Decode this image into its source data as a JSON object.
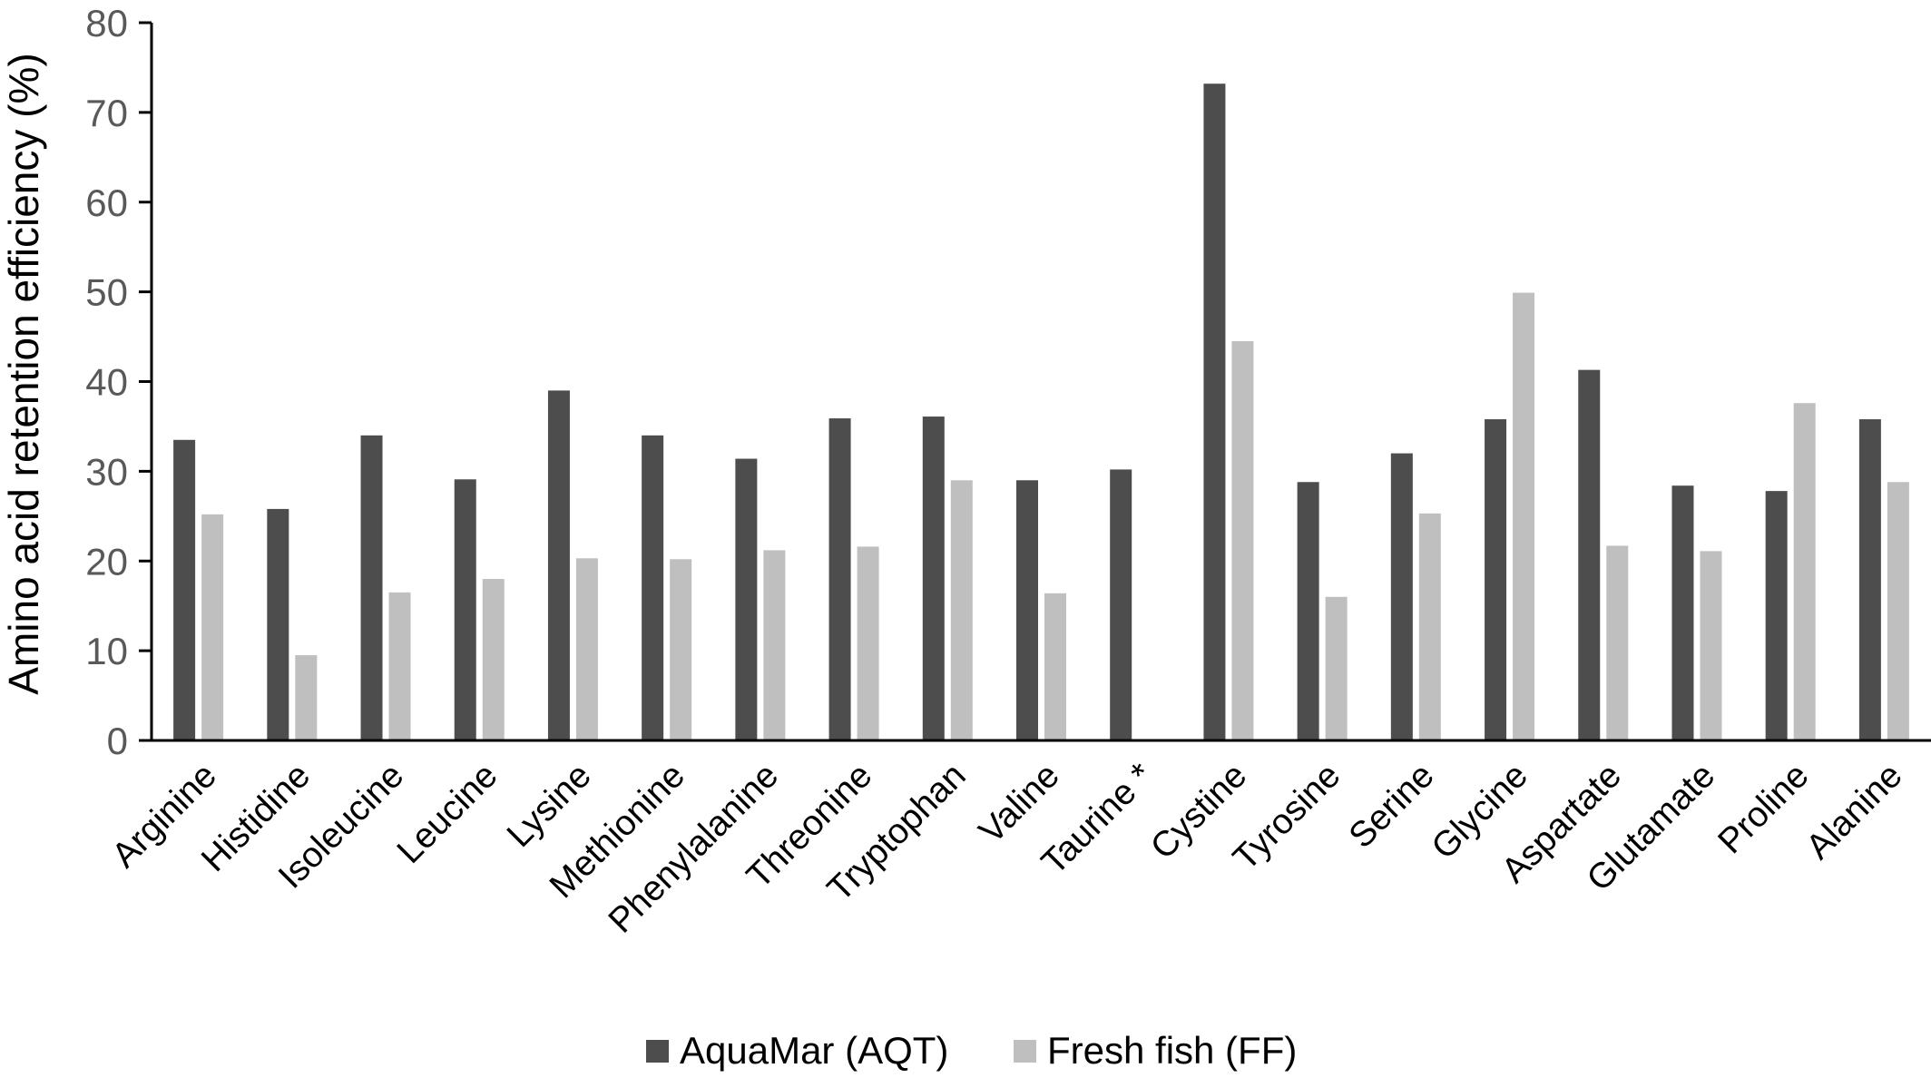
{
  "chart_data": {
    "type": "bar",
    "ylabel": "Amino acid retention efficiency (%)",
    "xlabel": "",
    "ylim": [
      0,
      80
    ],
    "yticks": [
      0,
      10,
      20,
      30,
      40,
      50,
      60,
      70,
      80
    ],
    "grid": false,
    "legend_position": "bottom",
    "categories": [
      "Arginine",
      "Histidine",
      "Isoleucine",
      "Leucine",
      "Lysine",
      "Methionine",
      "Phenylalanine",
      "Threonine",
      "Tryptophan",
      "Valine",
      "Taurine *",
      "Cystine",
      "Tyrosine",
      "Serine",
      "Glycine",
      "Aspartate",
      "Glutamate",
      "Proline",
      "Alanine"
    ],
    "series": [
      {
        "name": "AquaMar (AQT)",
        "color": "#4d4d4d",
        "values": [
          33.5,
          25.8,
          34.0,
          29.1,
          39.0,
          34.0,
          31.4,
          35.9,
          36.1,
          29.0,
          30.2,
          73.2,
          28.8,
          32.0,
          35.8,
          41.3,
          28.4,
          27.8,
          35.8
        ]
      },
      {
        "name": "Fresh fish (FF)",
        "color": "#bfbfbf",
        "values": [
          25.2,
          9.5,
          16.5,
          18.0,
          20.3,
          20.2,
          21.2,
          21.6,
          29.0,
          16.4,
          null,
          44.5,
          16.0,
          25.3,
          49.9,
          21.7,
          21.1,
          37.6,
          28.8
        ]
      }
    ]
  }
}
